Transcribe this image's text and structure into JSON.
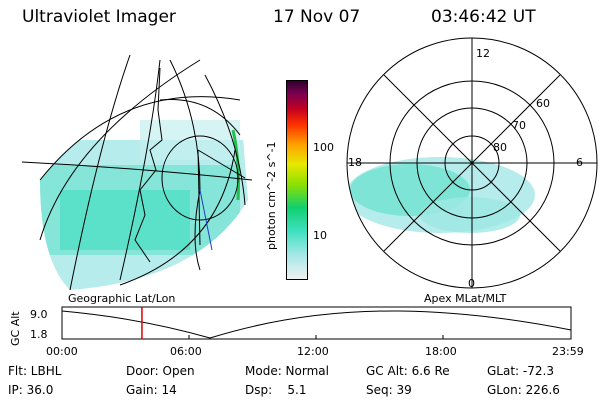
{
  "header": {
    "title": "Ultraviolet Imager",
    "date": "17 Nov 07",
    "time": "03:46:42 UT"
  },
  "panels": {
    "left_caption": "Geographic Lat/Lon",
    "right_caption": "Apex MLat/MLT"
  },
  "colorbar": {
    "label": "photon cm^-2 s^-1",
    "ticks": [
      "100",
      "10"
    ],
    "scale": "log",
    "colors": [
      "#f0f0f0",
      "#a6e8e8",
      "#40e0c0",
      "#10d070",
      "#90e000",
      "#e8e800",
      "#ffa000",
      "#ff3000",
      "#c00020",
      "#800050",
      "#300030"
    ]
  },
  "polar_plot": {
    "mlt_labels": [
      "12",
      "18",
      "6",
      "0"
    ],
    "lat_labels": [
      "60",
      "70",
      "80"
    ]
  },
  "altitude_plot": {
    "ylabel": "GC Alt",
    "yticks": [
      "9.0",
      "1.8"
    ],
    "xticks": [
      "00:00",
      "06:00",
      "12:00",
      "18:00",
      "23:59"
    ],
    "marker_time": "03:46",
    "marker_color": "#e00000"
  },
  "info": {
    "flt": "Flt: LBHL",
    "ip": "IP: 36.0",
    "door": "Door: Open",
    "gain": "Gain: 14",
    "mode": "Mode: Normal",
    "dsp": "Dsp:    5.1",
    "gc_alt": "GC Alt: 6.6 Re",
    "seq": "Seq: 39",
    "glat": "GLat: -72.3",
    "glon": "GLon: 226.6"
  }
}
